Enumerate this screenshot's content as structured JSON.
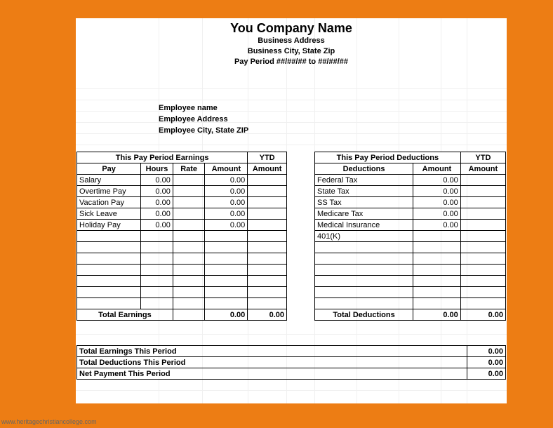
{
  "page": {
    "background_color": "#ed7d14",
    "sheet_background": "#ffffff",
    "border_color": "#000000",
    "gridline_color": "#f0f0f0"
  },
  "header": {
    "company_name": "You Company Name",
    "address": "Business Address",
    "city_state_zip": "Business City, State  Zip",
    "pay_period": "Pay Period ##/##/## to ##/##/##"
  },
  "employee": {
    "name": "Employee name",
    "address": "Employee Address",
    "city_state_zip": "Employee City, State  ZIP"
  },
  "earnings": {
    "section_title": "This Pay Period Earnings",
    "ytd_label": "YTD",
    "columns": {
      "pay": "Pay",
      "hours": "Hours",
      "rate": "Rate",
      "amount": "Amount",
      "ytd_amount": "Amount"
    },
    "rows": [
      {
        "label": "Salary",
        "hours": "0.00",
        "rate": "",
        "amount": "0.00",
        "ytd": ""
      },
      {
        "label": "Overtime Pay",
        "hours": "0.00",
        "rate": "",
        "amount": "0.00",
        "ytd": ""
      },
      {
        "label": "Vacation Pay",
        "hours": "0.00",
        "rate": "",
        "amount": "0.00",
        "ytd": ""
      },
      {
        "label": "Sick Leave",
        "hours": "0.00",
        "rate": "",
        "amount": "0.00",
        "ytd": ""
      },
      {
        "label": "Holiday Pay",
        "hours": "0.00",
        "rate": "",
        "amount": "0.00",
        "ytd": ""
      },
      {
        "label": "",
        "hours": "",
        "rate": "",
        "amount": "",
        "ytd": ""
      },
      {
        "label": "",
        "hours": "",
        "rate": "",
        "amount": "",
        "ytd": ""
      },
      {
        "label": "",
        "hours": "",
        "rate": "",
        "amount": "",
        "ytd": ""
      },
      {
        "label": "",
        "hours": "",
        "rate": "",
        "amount": "",
        "ytd": ""
      },
      {
        "label": "",
        "hours": "",
        "rate": "",
        "amount": "",
        "ytd": ""
      },
      {
        "label": "",
        "hours": "",
        "rate": "",
        "amount": "",
        "ytd": ""
      },
      {
        "label": "",
        "hours": "",
        "rate": "",
        "amount": "",
        "ytd": ""
      }
    ],
    "total_label": "Total Earnings",
    "total_amount": "0.00",
    "total_ytd": "0.00"
  },
  "deductions": {
    "section_title": "This Pay Period Deductions",
    "ytd_label": "YTD",
    "columns": {
      "deductions": "Deductions",
      "amount": "Amount",
      "ytd_amount": "Amount"
    },
    "rows": [
      {
        "label": "Federal Tax",
        "amount": "0.00",
        "ytd": ""
      },
      {
        "label": "State Tax",
        "amount": "0.00",
        "ytd": ""
      },
      {
        "label": "SS Tax",
        "amount": "0.00",
        "ytd": ""
      },
      {
        "label": "Medicare Tax",
        "amount": "0.00",
        "ytd": ""
      },
      {
        "label": "Medical Insurance",
        "amount": "0.00",
        "ytd": ""
      },
      {
        "label": "401(K)",
        "amount": "",
        "ytd": ""
      },
      {
        "label": "",
        "amount": "",
        "ytd": ""
      },
      {
        "label": "",
        "amount": "",
        "ytd": ""
      },
      {
        "label": "",
        "amount": "",
        "ytd": ""
      },
      {
        "label": "",
        "amount": "",
        "ytd": ""
      },
      {
        "label": "",
        "amount": "",
        "ytd": ""
      },
      {
        "label": "",
        "amount": "",
        "ytd": ""
      }
    ],
    "total_label": "Total Deductions",
    "total_amount": "0.00",
    "total_ytd": "0.00"
  },
  "summary": {
    "rows": [
      {
        "label": "Total Earnings This Period",
        "value": "0.00"
      },
      {
        "label": "Total Deductions This Period",
        "value": "0.00"
      },
      {
        "label": "Net Payment This Period",
        "value": "0.00"
      }
    ]
  },
  "watermark": "www.heritagechristiancollege.com"
}
